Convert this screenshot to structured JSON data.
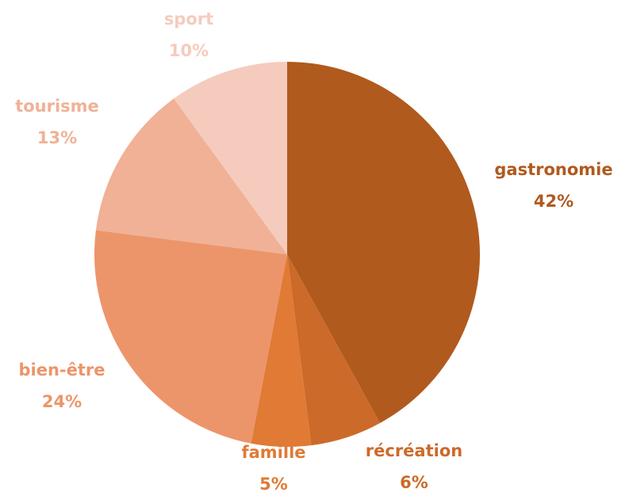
{
  "chart_data": {
    "type": "pie",
    "categories": [
      "gastronomie",
      "récréation",
      "famille",
      "bien-être",
      "tourisme",
      "sport"
    ],
    "values": [
      42,
      6,
      5,
      24,
      13,
      10
    ],
    "value_labels": [
      "42%",
      "6%",
      "5%",
      "24%",
      "13%",
      "10%"
    ],
    "colors": [
      "#b05a1e",
      "#cc6a2a",
      "#e07a35",
      "#ec956a",
      "#f0b196",
      "#f5cbbd"
    ]
  }
}
